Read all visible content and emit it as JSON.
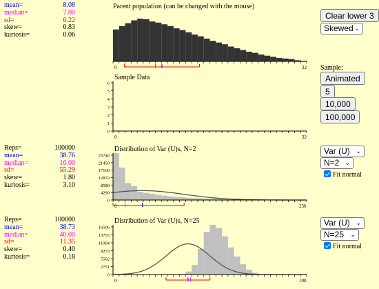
{
  "parent": {
    "title": "Parent population (can be changed with the mouse)",
    "stats": {
      "mean_label": "mean=",
      "mean": "8.08",
      "median_label": "median=",
      "median": "7.00",
      "sd_label": "sd=",
      "sd": "6.22",
      "skew_label": "skew=",
      "skew": "0.83",
      "kurtosis_label": "kurtosis=",
      "kurtosis": "0.06"
    },
    "axis_min": "0",
    "axis_max": "32",
    "clear_button": "Clear lower 3",
    "dist_select": "Skewed",
    "chart_data": {
      "type": "bar",
      "x": [
        0,
        1,
        2,
        3,
        4,
        5,
        6,
        7,
        8,
        9,
        10,
        11,
        12,
        13,
        14,
        15,
        16,
        17,
        18,
        19,
        20,
        21,
        22,
        23,
        24,
        25,
        26,
        27,
        28,
        29,
        30,
        31
      ],
      "values": [
        56,
        62,
        67,
        72,
        75,
        74,
        70,
        68,
        65,
        62,
        58,
        55,
        51,
        47,
        44,
        40,
        36,
        33,
        30,
        26,
        23,
        20,
        17,
        15,
        12,
        10,
        8,
        6,
        5,
        4,
        2,
        1
      ],
      "xlim": [
        0,
        32
      ],
      "markers": {
        "mean": 8.08,
        "median": 7.0,
        "sd": 6.22
      }
    }
  },
  "sample": {
    "title": "Sample Data",
    "label": "Sample:",
    "buttons": [
      "Animated",
      "5",
      "10,000",
      "100,000"
    ],
    "y_ticks": [
      "6",
      "5",
      "4",
      "3",
      "2",
      "1",
      "0"
    ],
    "axis_min": "0",
    "axis_max": "32"
  },
  "dist1": {
    "title": "Distribution of Var (U)s, N=2",
    "stats": {
      "reps_label": "Reps=",
      "reps": "100000",
      "mean_label": "mean=",
      "mean": "38.76",
      "median_label": "median=",
      "median": "16.00",
      "sd_label": "sd=",
      "sd": "55.29",
      "skew_label": "skew=",
      "skew": "1.80",
      "kurtosis_label": "kurtosis=",
      "kurtosis": "3.10"
    },
    "stat_select": "Var (U)",
    "n_select": "N=2",
    "fit_label": "Fit normal",
    "y_ticks": [
      "25740",
      "21450",
      "17160",
      "12870",
      "8580",
      "4290",
      "0"
    ],
    "axis_min": "0",
    "axis_max": "256",
    "chart_data": {
      "type": "bar",
      "bin_width": 8,
      "xlim": [
        0,
        256
      ],
      "ylim": [
        0,
        25740
      ],
      "values": [
        25740,
        17800,
        9300,
        7600,
        4500,
        3900,
        3400,
        2800,
        2400,
        2000,
        1700,
        1500,
        1200,
        1000,
        900,
        800,
        650,
        500,
        400,
        320,
        250,
        200,
        150,
        120,
        100,
        80,
        60,
        40,
        30,
        20,
        10,
        5
      ],
      "normal_fit": {
        "mean": 38.76,
        "sd": 55.29
      },
      "markers": {
        "mean": 38.76,
        "median": 16.0,
        "sd": 55.29
      }
    }
  },
  "dist2": {
    "title": "Distribution of Var (U)s, N=25",
    "stats": {
      "reps_label": "Reps=",
      "reps": "100000",
      "mean_label": "mean=",
      "mean": "38.73",
      "median_label": "median=",
      "median": "40.00",
      "sd_label": "sd=",
      "sd": "11.35",
      "skew_label": "skew=",
      "skew": "0.40",
      "kurtosis_label": "kurtosis=",
      "kurtosis": "0.18"
    },
    "stat_select": "Var (U)",
    "n_select": "N=25",
    "fit_label": "Fit normal",
    "y_ticks": [
      "16506",
      "13755",
      "11004",
      "8253",
      "5502",
      "2751",
      "0"
    ],
    "axis_min": "0",
    "axis_max": "100",
    "chart_data": {
      "type": "bar",
      "bin_width": 3.125,
      "xlim": [
        0,
        100
      ],
      "ylim": [
        0,
        16506
      ],
      "values": [
        0,
        0,
        0,
        0,
        0,
        0,
        0,
        0,
        0,
        0,
        0,
        250,
        1000,
        3200,
        8500,
        14200,
        16506,
        15500,
        12700,
        9000,
        6000,
        3400,
        1600,
        600,
        200,
        60,
        20,
        5,
        0,
        0,
        0,
        0
      ],
      "normal_fit": {
        "mean": 38.73,
        "sd": 11.35
      },
      "markers": {
        "mean": 38.73,
        "median": 40.0,
        "sd": 11.35
      }
    }
  }
}
